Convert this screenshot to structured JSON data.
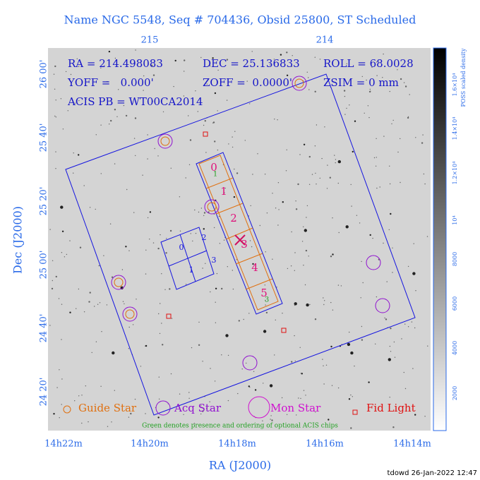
{
  "title": "Name NGC 5548, Seq # 704436, Obsid 25800, ST Scheduled",
  "top_ticks": [
    "215",
    "214"
  ],
  "header": {
    "ra": "RA = 214.498083",
    "dec": "DEC = 25.136833",
    "roll": "ROLL = 68.0028",
    "yoff": "YOFF =   0.000'",
    "zoff": "ZOFF =  0.0000'",
    "zsim": "ZSIM = 0 mm",
    "acis_pb": "ACIS PB = WT00CA2014"
  },
  "y_ticks": [
    "26 00'",
    "25 40'",
    "25 20'",
    "25 00'",
    "24 40'",
    "24 20'"
  ],
  "x_ticks": [
    "14h22m",
    "14h20m",
    "14h18m",
    "14h16m",
    "14h14m"
  ],
  "x_label": "RA (J2000)",
  "y_label": "Dec (J2000)",
  "colorbar": {
    "title": "POSS scaled density",
    "labels": [
      "2000",
      "4000",
      "6000",
      "8000",
      "10⁴",
      "1.2×10⁴",
      "1.4×10⁴",
      "1.6×10⁴"
    ]
  },
  "acis_s_chips": [
    "0",
    "1",
    "2",
    "3",
    "4",
    "5"
  ],
  "acis_i_chips": [
    "0",
    "2",
    "1",
    "3"
  ],
  "optional_chips": [
    "1",
    "3"
  ],
  "legend": {
    "guide": "Guide Star",
    "acq": "Acq Star",
    "mon": "Mon Star",
    "fid": "Fid Light"
  },
  "note": "Green denotes presence and ordering of optional ACIS chips",
  "footer": "tdowd 26-Jan-2022 12:47"
}
